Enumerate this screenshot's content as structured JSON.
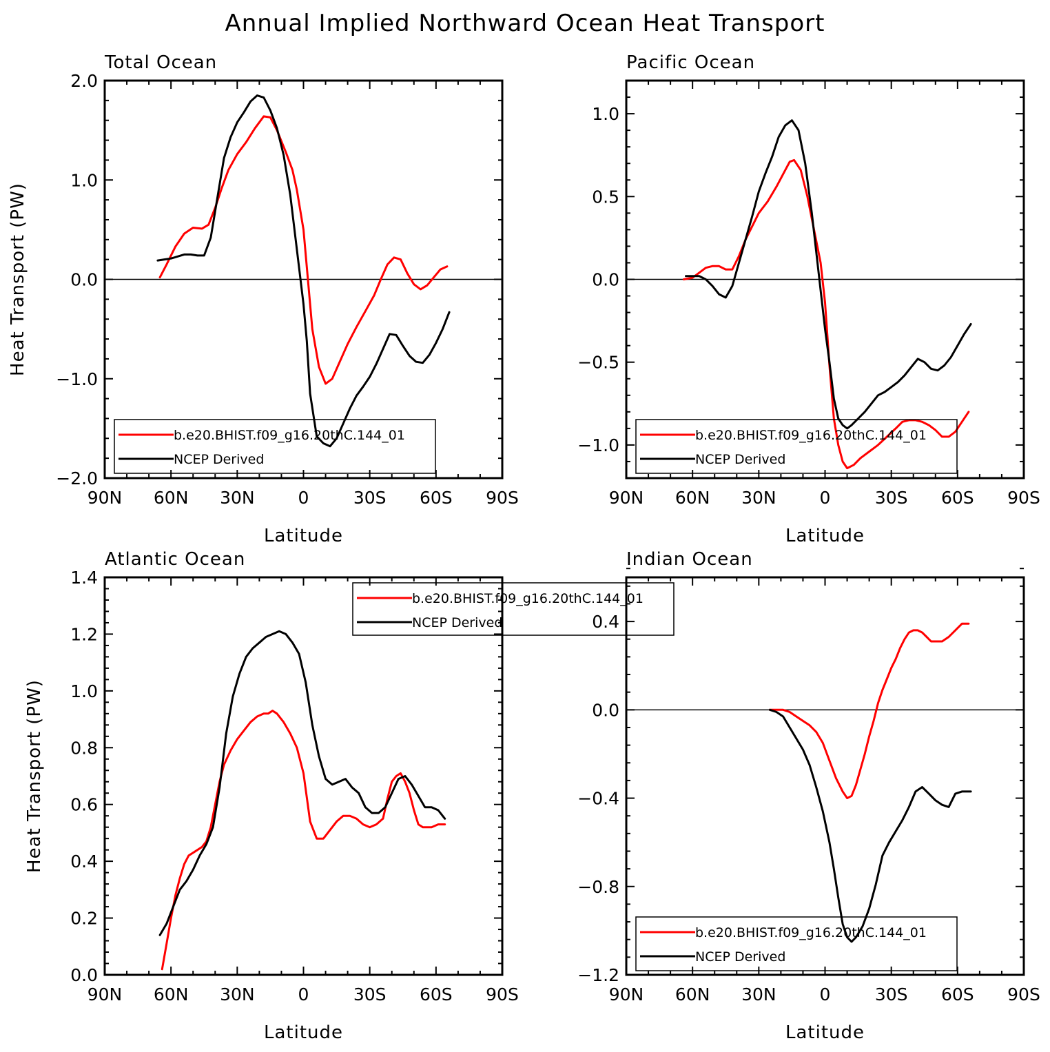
{
  "title": "Annual Implied Northward Ocean Heat Transport",
  "colors": {
    "model": "#ff0000",
    "obs": "#000000"
  },
  "chart_data": [
    {
      "type": "line",
      "title": "Total Ocean",
      "xlabel": "Latitude",
      "ylabel": "Heat Transport (PW)",
      "xlim": [
        -90,
        90
      ],
      "ylim": [
        -2.0,
        2.0
      ],
      "xticks": [
        -90,
        -60,
        -30,
        0,
        30,
        60,
        90
      ],
      "xticklabels": [
        "90N",
        "60N",
        "30N",
        "0",
        "30S",
        "60S",
        "90S"
      ],
      "yticks": [
        -2.0,
        -1.0,
        0.0,
        1.0,
        2.0
      ],
      "yticklabels": [
        "−2.0",
        "−1.0",
        "0.0",
        "1.0",
        "2.0"
      ],
      "zero_line": true,
      "legend_position": "lower-left",
      "series": [
        {
          "name": "b.e20.BHIST.f09_g16.20thC.144_01",
          "color": "#ff0000",
          "x": [
            -65,
            -62,
            -58,
            -54,
            -50,
            -46,
            -43,
            -40,
            -37,
            -34,
            -30,
            -26,
            -22,
            -18,
            -15,
            -12,
            -8,
            -5,
            -3,
            0,
            2,
            4,
            7,
            10,
            13,
            16,
            20,
            24,
            28,
            32,
            35,
            38,
            41,
            44,
            47,
            50,
            53,
            56,
            59,
            62,
            65
          ],
          "y": [
            0.02,
            0.15,
            0.33,
            0.46,
            0.52,
            0.51,
            0.55,
            0.72,
            0.92,
            1.1,
            1.26,
            1.38,
            1.52,
            1.64,
            1.63,
            1.5,
            1.28,
            1.1,
            0.9,
            0.5,
            0.0,
            -0.5,
            -0.88,
            -1.05,
            -1.0,
            -0.85,
            -0.65,
            -0.48,
            -0.32,
            -0.16,
            0.0,
            0.15,
            0.22,
            0.2,
            0.06,
            -0.05,
            -0.1,
            -0.06,
            0.02,
            0.1,
            0.13
          ]
        },
        {
          "name": "NCEP Derived",
          "color": "#000000",
          "x": [
            -66,
            -63,
            -60,
            -57,
            -54,
            -51,
            -48,
            -45,
            -42,
            -39,
            -36,
            -33,
            -30,
            -27,
            -24,
            -21,
            -18,
            -15,
            -12,
            -9,
            -6,
            -3,
            0,
            1.5,
            3,
            6,
            9,
            12,
            15,
            18,
            21,
            24,
            27,
            30,
            33,
            36,
            39,
            42,
            45,
            48,
            51,
            54,
            57,
            60,
            63,
            66
          ],
          "y": [
            0.19,
            0.2,
            0.21,
            0.23,
            0.25,
            0.25,
            0.24,
            0.24,
            0.42,
            0.82,
            1.22,
            1.43,
            1.58,
            1.68,
            1.79,
            1.85,
            1.83,
            1.7,
            1.52,
            1.25,
            0.85,
            0.3,
            -0.25,
            -0.62,
            -1.15,
            -1.58,
            -1.65,
            -1.68,
            -1.6,
            -1.45,
            -1.3,
            -1.17,
            -1.08,
            -0.98,
            -0.85,
            -0.7,
            -0.55,
            -0.56,
            -0.67,
            -0.77,
            -0.83,
            -0.84,
            -0.76,
            -0.64,
            -0.5,
            -0.33
          ]
        }
      ]
    },
    {
      "type": "line",
      "title": "Pacific Ocean",
      "xlabel": "Latitude",
      "ylabel": "",
      "xlim": [
        -90,
        90
      ],
      "ylim": [
        -1.2,
        1.2
      ],
      "xticks": [
        -90,
        -60,
        -30,
        0,
        30,
        60,
        90
      ],
      "xticklabels": [
        "90N",
        "60N",
        "30N",
        "0",
        "30S",
        "60S",
        "90S"
      ],
      "yticks": [
        -1.0,
        -0.5,
        0.0,
        0.5,
        1.0
      ],
      "yticklabels": [
        "−1.0",
        "−0.5",
        "0.0",
        "0.5",
        "1.0"
      ],
      "zero_line": true,
      "legend_position": "lower-left",
      "series": [
        {
          "name": "b.e20.BHIST.f09_g16.20thC.144_01",
          "color": "#ff0000",
          "x": [
            -64,
            -60,
            -57,
            -54,
            -51,
            -48,
            -45,
            -42,
            -39,
            -36,
            -33,
            -30,
            -26,
            -22,
            -18,
            -16,
            -14,
            -11,
            -8,
            -5,
            -2,
            0,
            2,
            4,
            6,
            8,
            10,
            13,
            16,
            20,
            24,
            28,
            32,
            35,
            38,
            41,
            44,
            47,
            50,
            53,
            56,
            59,
            62,
            65
          ],
          "y": [
            0.0,
            0.01,
            0.04,
            0.07,
            0.08,
            0.08,
            0.06,
            0.06,
            0.14,
            0.24,
            0.32,
            0.4,
            0.47,
            0.56,
            0.66,
            0.71,
            0.72,
            0.66,
            0.5,
            0.3,
            0.1,
            -0.14,
            -0.52,
            -0.84,
            -1.0,
            -1.1,
            -1.14,
            -1.12,
            -1.08,
            -1.04,
            -1.0,
            -0.95,
            -0.9,
            -0.86,
            -0.85,
            -0.85,
            -0.86,
            -0.88,
            -0.91,
            -0.95,
            -0.95,
            -0.92,
            -0.86,
            -0.8
          ]
        },
        {
          "name": "NCEP Derived",
          "color": "#000000",
          "x": [
            -63,
            -60,
            -57,
            -54,
            -51,
            -48,
            -45,
            -42,
            -39,
            -36,
            -33,
            -30,
            -27,
            -24,
            -21,
            -18,
            -15,
            -12,
            -9,
            -6,
            -3,
            0,
            2,
            4,
            6,
            8,
            10,
            12,
            15,
            18,
            21,
            24,
            27,
            30,
            33,
            36,
            39,
            42,
            45,
            48,
            51,
            54,
            57,
            60,
            63,
            66
          ],
          "y": [
            0.02,
            0.02,
            0.02,
            0.0,
            -0.04,
            -0.09,
            -0.11,
            -0.04,
            0.1,
            0.24,
            0.38,
            0.53,
            0.64,
            0.74,
            0.86,
            0.93,
            0.96,
            0.9,
            0.7,
            0.4,
            0.05,
            -0.3,
            -0.5,
            -0.72,
            -0.84,
            -0.88,
            -0.9,
            -0.88,
            -0.84,
            -0.8,
            -0.75,
            -0.7,
            -0.68,
            -0.65,
            -0.62,
            -0.58,
            -0.53,
            -0.48,
            -0.5,
            -0.54,
            -0.55,
            -0.52,
            -0.47,
            -0.4,
            -0.33,
            -0.27
          ]
        }
      ]
    },
    {
      "type": "line",
      "title": "Atlantic Ocean",
      "xlabel": "Latitude",
      "ylabel": "Heat Transport (PW)",
      "xlim": [
        -90,
        90
      ],
      "ylim": [
        0.0,
        1.4
      ],
      "xticks": [
        -90,
        -60,
        -30,
        0,
        30,
        60,
        90
      ],
      "xticklabels": [
        "90N",
        "60N",
        "30N",
        "0",
        "30S",
        "60S",
        "90S"
      ],
      "yticks": [
        0.0,
        0.2,
        0.4,
        0.6,
        0.8,
        1.0,
        1.2,
        1.4
      ],
      "yticklabels": [
        "0.0",
        "0.2",
        "0.4",
        "0.6",
        "0.8",
        "1.0",
        "1.2",
        "1.4"
      ],
      "zero_line": false,
      "legend_position": "top-center",
      "series": [
        {
          "name": "b.e20.BHIST.f09_g16.20thC.144_01",
          "color": "#ff0000",
          "x": [
            -64,
            -62,
            -60,
            -58,
            -56,
            -54,
            -52,
            -50,
            -48,
            -46,
            -44,
            -42,
            -40,
            -38,
            -36,
            -33,
            -30,
            -27,
            -24,
            -21,
            -18,
            -16,
            -14,
            -12,
            -9,
            -6,
            -3,
            0,
            3,
            6,
            9,
            12,
            15,
            18,
            21,
            24,
            27,
            30,
            33,
            36,
            38,
            40,
            42,
            44,
            46,
            48,
            50,
            52,
            54,
            56,
            58,
            61,
            64
          ],
          "y": [
            0.02,
            0.11,
            0.2,
            0.28,
            0.34,
            0.39,
            0.42,
            0.43,
            0.44,
            0.45,
            0.47,
            0.52,
            0.6,
            0.68,
            0.74,
            0.79,
            0.83,
            0.86,
            0.89,
            0.91,
            0.92,
            0.92,
            0.93,
            0.92,
            0.89,
            0.85,
            0.8,
            0.71,
            0.54,
            0.48,
            0.48,
            0.51,
            0.54,
            0.56,
            0.56,
            0.55,
            0.53,
            0.52,
            0.53,
            0.55,
            0.62,
            0.68,
            0.7,
            0.71,
            0.68,
            0.64,
            0.58,
            0.53,
            0.52,
            0.52,
            0.52,
            0.53,
            0.53
          ]
        },
        {
          "name": "NCEP Derived",
          "color": "#000000",
          "x": [
            -65,
            -62,
            -59,
            -56,
            -53,
            -50,
            -47,
            -44,
            -41,
            -38,
            -35,
            -32,
            -29,
            -26,
            -23,
            -20,
            -17,
            -14,
            -11,
            -8,
            -5,
            -2,
            1,
            4,
            7,
            10,
            13,
            16,
            19,
            22,
            25,
            28,
            31,
            34,
            37,
            40,
            43,
            46,
            49,
            52,
            55,
            58,
            61,
            64
          ],
          "y": [
            0.14,
            0.18,
            0.24,
            0.3,
            0.33,
            0.37,
            0.42,
            0.46,
            0.52,
            0.66,
            0.85,
            0.98,
            1.06,
            1.12,
            1.15,
            1.17,
            1.19,
            1.2,
            1.21,
            1.2,
            1.17,
            1.13,
            1.03,
            0.88,
            0.77,
            0.69,
            0.67,
            0.68,
            0.69,
            0.66,
            0.64,
            0.59,
            0.57,
            0.57,
            0.59,
            0.64,
            0.69,
            0.7,
            0.67,
            0.63,
            0.59,
            0.59,
            0.58,
            0.55
          ]
        }
      ]
    },
    {
      "type": "line",
      "title": "Indian Ocean",
      "xlabel": "Latitude",
      "ylabel": "",
      "xlim": [
        -90,
        90
      ],
      "ylim": [
        -1.2,
        0.6
      ],
      "xticks": [
        -90,
        -60,
        -30,
        0,
        30,
        60,
        90
      ],
      "xticklabels": [
        "90N",
        "60N",
        "30N",
        "0",
        "30S",
        "60S",
        "90S"
      ],
      "yticks": [
        -1.2,
        -0.8,
        -0.4,
        0.0,
        0.4
      ],
      "yticklabels": [
        "−1.2",
        "−0.8",
        "−0.4",
        "0.0",
        "0.4"
      ],
      "zero_line": true,
      "legend_position": "lower-left",
      "series": [
        {
          "name": "b.e20.BHIST.f09_g16.20thC.144_01",
          "color": "#ff0000",
          "x": [
            -25,
            -22,
            -19,
            -16,
            -13,
            -10,
            -7,
            -4,
            -1,
            2,
            5,
            8,
            10,
            12,
            14,
            16,
            18,
            20,
            22,
            24,
            26,
            28,
            30,
            32,
            34,
            36,
            38,
            40,
            42,
            44,
            46,
            48,
            50,
            53,
            56,
            59,
            62,
            65
          ],
          "y": [
            0.0,
            0.0,
            0.0,
            -0.01,
            -0.03,
            -0.05,
            -0.07,
            -0.1,
            -0.15,
            -0.23,
            -0.31,
            -0.37,
            -0.4,
            -0.39,
            -0.34,
            -0.27,
            -0.2,
            -0.12,
            -0.05,
            0.03,
            0.09,
            0.14,
            0.19,
            0.23,
            0.28,
            0.32,
            0.35,
            0.36,
            0.36,
            0.35,
            0.33,
            0.31,
            0.31,
            0.31,
            0.33,
            0.36,
            0.39,
            0.39
          ]
        },
        {
          "name": "NCEP Derived",
          "color": "#000000",
          "x": [
            -25,
            -22,
            -19,
            -16,
            -13,
            -10,
            -7,
            -4,
            -1,
            2,
            4,
            6,
            8,
            10,
            12,
            14,
            17,
            20,
            23,
            26,
            29,
            32,
            35,
            38,
            41,
            44,
            47,
            50,
            53,
            56,
            59,
            62,
            66
          ],
          "y": [
            0.0,
            -0.01,
            -0.03,
            -0.08,
            -0.13,
            -0.18,
            -0.25,
            -0.35,
            -0.46,
            -0.6,
            -0.72,
            -0.85,
            -0.97,
            -1.03,
            -1.05,
            -1.03,
            -0.98,
            -0.9,
            -0.79,
            -0.66,
            -0.6,
            -0.55,
            -0.5,
            -0.44,
            -0.37,
            -0.35,
            -0.38,
            -0.41,
            -0.43,
            -0.44,
            -0.38,
            -0.37,
            -0.37
          ]
        }
      ]
    }
  ]
}
